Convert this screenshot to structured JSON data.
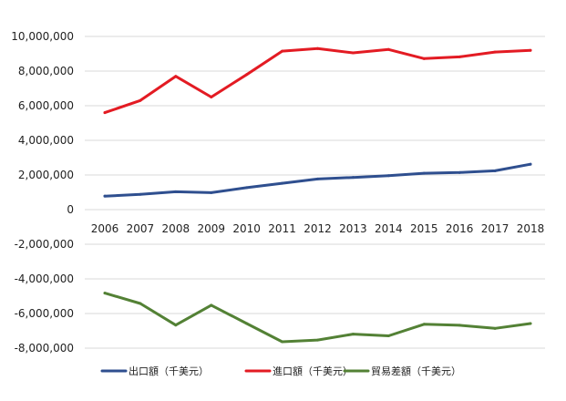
{
  "chart_data": {
    "type": "line",
    "title": "",
    "xlabel": "",
    "ylabel": "",
    "categories": [
      "2006",
      "2007",
      "2008",
      "2009",
      "2010",
      "2011",
      "2012",
      "2013",
      "2014",
      "2015",
      "2016",
      "2017",
      "2018"
    ],
    "ylim": [
      -8000000,
      10000000
    ],
    "yticks": [
      10000000,
      8000000,
      6000000,
      4000000,
      2000000,
      0,
      -2000000,
      -4000000,
      -6000000,
      -8000000
    ],
    "ytick_labels": [
      "10,000,000",
      "8,000,000",
      "6,000,000",
      "4,000,000",
      "2,000,000",
      "0",
      "-2,000,000",
      "-4,000,000",
      "-6,000,000",
      "-8,000,000"
    ],
    "grid": "horizontal",
    "legend_position": "bottom",
    "series": [
      {
        "name": "出口額（千美元）",
        "color": "#2f4f8f",
        "values": [
          780000,
          880000,
          1030000,
          980000,
          1270000,
          1520000,
          1770000,
          1860000,
          1960000,
          2100000,
          2140000,
          2240000,
          2620000
        ]
      },
      {
        "name": "進口額（千美元）",
        "color": "#e31b23",
        "values": [
          5600000,
          6300000,
          7700000,
          6500000,
          7800000,
          9150000,
          9300000,
          9050000,
          9250000,
          8720000,
          8820000,
          9100000,
          9200000
        ]
      },
      {
        "name": "貿易差額（千美元）",
        "color": "#538135",
        "values": [
          -4820000,
          -5420000,
          -6670000,
          -5520000,
          -6580000,
          -7630000,
          -7530000,
          -7190000,
          -7290000,
          -6620000,
          -6680000,
          -6860000,
          -6580000
        ]
      }
    ]
  }
}
